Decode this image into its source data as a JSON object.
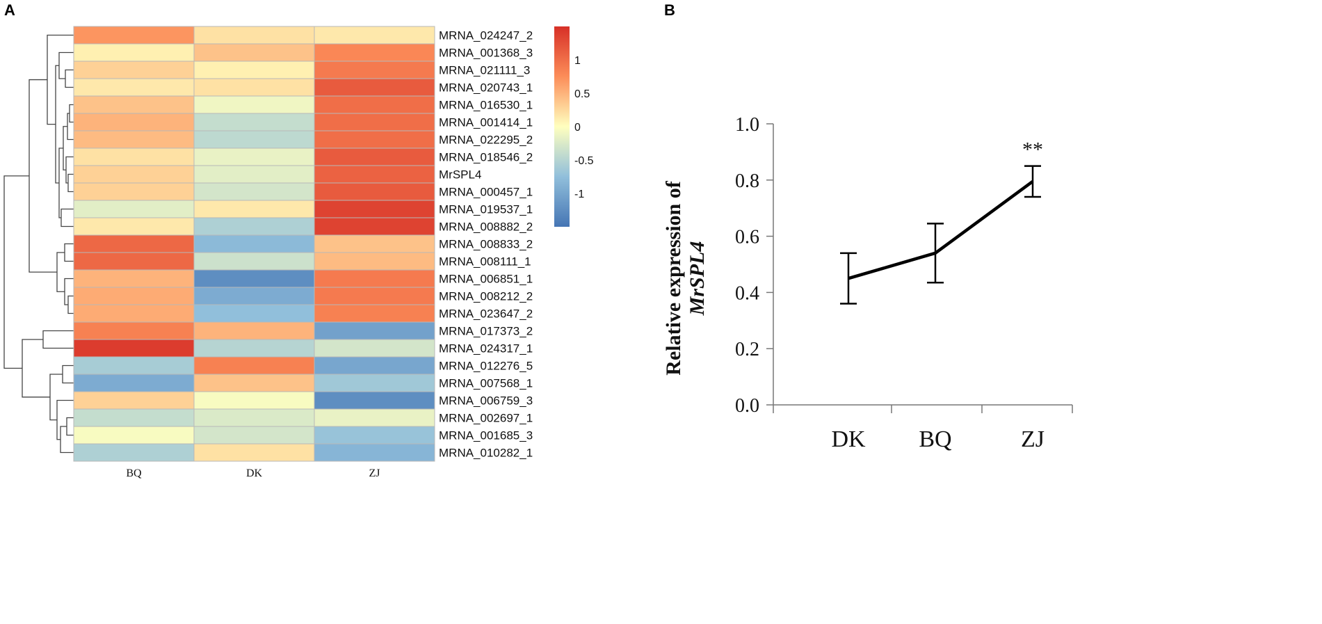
{
  "panels": {
    "a": "A",
    "b": "B"
  },
  "chart_data": [
    {
      "type": "heatmap",
      "title": "",
      "columns": [
        "BQ",
        "DK",
        "ZJ"
      ],
      "rows": [
        "MRNA_024247_2",
        "MRNA_001368_3",
        "MRNA_021111_3",
        "MRNA_020743_1",
        "MRNA_016530_1",
        "MRNA_001414_1",
        "MRNA_022295_2",
        "MRNA_018546_2",
        "MrSPL4",
        "MRNA_000457_1",
        "MRNA_019537_1",
        "MRNA_008882_2",
        "MRNA_008833_2",
        "MRNA_008111_1",
        "MRNA_006851_1",
        "MRNA_008212_2",
        "MRNA_023647_2",
        "MRNA_017373_2",
        "MRNA_024317_1",
        "MRNA_012276_5",
        "MRNA_007568_1",
        "MRNA_006759_3",
        "MRNA_002697_1",
        "MRNA_001685_3",
        "MRNA_010282_1"
      ],
      "values": [
        [
          0.7,
          0.2,
          0.15
        ],
        [
          0.1,
          0.4,
          0.8
        ],
        [
          0.3,
          0.1,
          0.9
        ],
        [
          0.15,
          0.2,
          1.15
        ],
        [
          0.4,
          -0.1,
          1.0
        ],
        [
          0.5,
          -0.4,
          1.0
        ],
        [
          0.45,
          -0.45,
          1.0
        ],
        [
          0.2,
          -0.15,
          1.15
        ],
        [
          0.3,
          -0.2,
          1.1
        ],
        [
          0.3,
          -0.3,
          1.15
        ],
        [
          -0.2,
          0.15,
          1.35
        ],
        [
          0.15,
          -0.55,
          1.35
        ],
        [
          1.05,
          -0.8,
          0.4
        ],
        [
          1.05,
          -0.35,
          0.45
        ],
        [
          0.5,
          -1.25,
          0.9
        ],
        [
          0.55,
          -0.95,
          0.9
        ],
        [
          0.55,
          -0.75,
          0.85
        ],
        [
          0.85,
          0.5,
          -1.05
        ],
        [
          1.4,
          -0.5,
          -0.3
        ],
        [
          -0.6,
          0.85,
          -1.0
        ],
        [
          -0.95,
          0.4,
          -0.65
        ],
        [
          0.3,
          -0.05,
          -1.25
        ],
        [
          -0.4,
          -0.25,
          -0.15
        ],
        [
          -0.05,
          -0.3,
          -0.7
        ],
        [
          -0.55,
          0.2,
          -0.85
        ]
      ],
      "colorbar": {
        "ticks": [
          "1",
          "0.5",
          "0",
          "-0.5",
          "-1"
        ],
        "tick_values": [
          1,
          0.5,
          0,
          -0.5,
          -1
        ],
        "range": [
          -1.5,
          1.5
        ]
      },
      "colors": {
        "high": "#d73027",
        "mid": "#ffffbf",
        "low": "#4575b4"
      }
    },
    {
      "type": "line",
      "title": "",
      "ylabel_line1": "Relative expression of",
      "ylabel_line2": "MrSPL4",
      "xlabel": "",
      "categories": [
        "DK",
        "BQ",
        "ZJ"
      ],
      "values": [
        0.45,
        0.54,
        0.795
      ],
      "errors": [
        0.09,
        0.105,
        0.055
      ],
      "ylim": [
        0.0,
        1.0
      ],
      "yticks": [
        "0.0",
        "0.2",
        "0.4",
        "0.6",
        "0.8",
        "1.0"
      ],
      "annotation": "**"
    }
  ]
}
